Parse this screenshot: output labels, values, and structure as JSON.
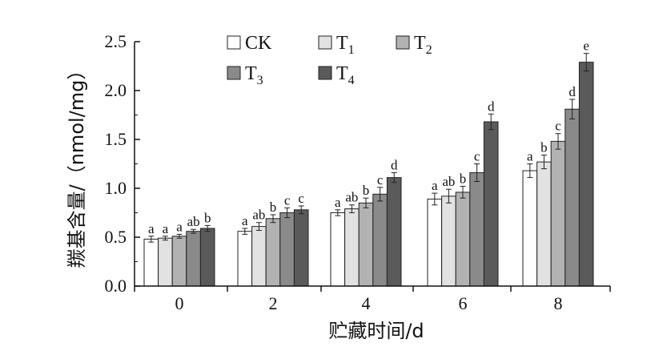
{
  "chart_data": {
    "type": "bar",
    "xlabel": "贮藏时间/d",
    "ylabel": "羰基含量/（nmol/mg）",
    "ylim": [
      0,
      2.5
    ],
    "yticks": [
      "0.0",
      "0.5",
      "1.0",
      "1.5",
      "2.0",
      "2.5"
    ],
    "categories": [
      "0",
      "2",
      "4",
      "6",
      "8"
    ],
    "legend_position": "top",
    "grid": false,
    "series": [
      {
        "name": "CK",
        "name_main": "CK",
        "name_sub": "",
        "color": "#ffffff",
        "values": [
          0.48,
          0.56,
          0.75,
          0.89,
          1.18
        ],
        "errors": [
          0.03,
          0.03,
          0.03,
          0.06,
          0.07
        ],
        "labels": [
          "a",
          "a",
          "a",
          "a",
          "a"
        ]
      },
      {
        "name": "T1",
        "name_main": "T",
        "name_sub": "1",
        "color": "#e2e2e2",
        "values": [
          0.49,
          0.61,
          0.79,
          0.92,
          1.27
        ],
        "errors": [
          0.02,
          0.04,
          0.04,
          0.07,
          0.07
        ],
        "labels": [
          "a",
          "ab",
          "ab",
          "ab",
          "b"
        ]
      },
      {
        "name": "T2",
        "name_main": "T",
        "name_sub": "2",
        "color": "#b2b2b2",
        "values": [
          0.51,
          0.69,
          0.85,
          0.96,
          1.48
        ],
        "errors": [
          0.02,
          0.04,
          0.05,
          0.06,
          0.08
        ],
        "labels": [
          "a",
          "b",
          "b",
          "b",
          "c"
        ]
      },
      {
        "name": "T3",
        "name_main": "T",
        "name_sub": "3",
        "color": "#8a8a8a",
        "values": [
          0.56,
          0.75,
          0.94,
          1.16,
          1.81
        ],
        "errors": [
          0.02,
          0.05,
          0.07,
          0.09,
          0.1
        ],
        "labels": [
          "ab",
          "c",
          "c",
          "c",
          "d"
        ]
      },
      {
        "name": "T4",
        "name_main": "T",
        "name_sub": "4",
        "color": "#5a5a5a",
        "values": [
          0.59,
          0.78,
          1.11,
          1.68,
          2.29
        ],
        "errors": [
          0.03,
          0.04,
          0.05,
          0.08,
          0.09
        ],
        "labels": [
          "b",
          "c",
          "d",
          "d",
          "e"
        ]
      }
    ]
  }
}
